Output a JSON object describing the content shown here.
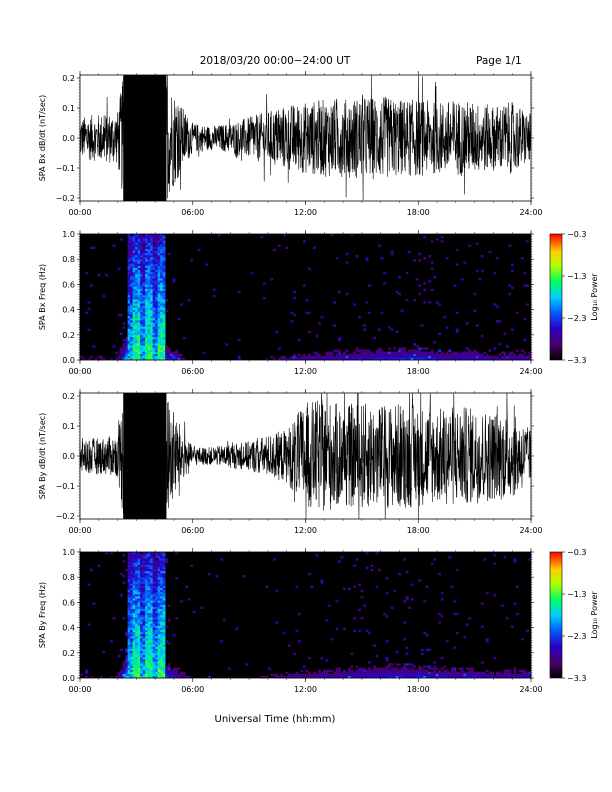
{
  "header": {
    "title": "2018/03/20  00:00−24:00 UT",
    "page": "Page 1/1"
  },
  "x_axis_title": "Universal Time (hh:mm)",
  "time_ticks": [
    "00:00",
    "06:00",
    "12:00",
    "18:00",
    "24:00"
  ],
  "chart_data": [
    {
      "type": "line",
      "id": "bx_waveform",
      "ylabel": "SPA Bx dB/dt (nT/sec)",
      "xlim": [
        0,
        24
      ],
      "ylim": [
        -0.21,
        0.21
      ],
      "yticks": [
        "0.2",
        "0.1",
        "0.0",
        "−0.1",
        "−0.2"
      ],
      "ytick_values": [
        0.2,
        0.1,
        0.0,
        -0.1,
        -0.2
      ],
      "saturated_interval_hours": [
        2.3,
        4.6
      ],
      "envelope_hours": [
        0,
        1,
        2,
        2.3,
        4.6,
        5.5,
        6,
        7,
        8,
        9,
        10,
        11,
        12,
        13,
        14,
        15,
        16,
        17,
        18,
        19,
        20,
        21,
        22,
        23,
        24
      ],
      "envelope_amplitude": [
        0.07,
        0.08,
        0.09,
        0.21,
        0.21,
        0.1,
        0.05,
        0.04,
        0.05,
        0.07,
        0.09,
        0.11,
        0.12,
        0.13,
        0.13,
        0.14,
        0.14,
        0.13,
        0.13,
        0.12,
        0.13,
        0.12,
        0.11,
        0.12,
        0.08
      ]
    },
    {
      "type": "heatmap",
      "id": "bx_spectrogram",
      "ylabel": "SPA Bx Freq (Hz)",
      "xlim": [
        0,
        24
      ],
      "ylim": [
        0,
        1.0
      ],
      "yticks": [
        "1.0",
        "0.8",
        "0.6",
        "0.4",
        "0.2",
        "0.0"
      ],
      "ytick_values": [
        1.0,
        0.8,
        0.6,
        0.4,
        0.2,
        0.0
      ],
      "colorbar": {
        "label": "Log₁₀ Power",
        "ticks": [
          "−0.3",
          "−1.3",
          "−2.3",
          "−3.3"
        ],
        "range": [
          -3.3,
          -0.3
        ]
      },
      "activity_hours": [
        0,
        2,
        2.6,
        3.3,
        4.5,
        6,
        9,
        12,
        15,
        17,
        18,
        20,
        21,
        22,
        24
      ],
      "activity_level": [
        0.25,
        0.2,
        1.0,
        0.95,
        0.6,
        0.15,
        0.15,
        0.35,
        0.45,
        0.5,
        0.5,
        0.4,
        0.45,
        0.35,
        0.4
      ]
    },
    {
      "type": "line",
      "id": "by_waveform",
      "ylabel": "SPA By dB/dt (nT/sec)",
      "xlim": [
        0,
        24
      ],
      "ylim": [
        -0.21,
        0.21
      ],
      "yticks": [
        "0.2",
        "0.1",
        "0.0",
        "−0.1",
        "−0.2"
      ],
      "ytick_values": [
        0.2,
        0.1,
        0.0,
        -0.1,
        -0.2
      ],
      "saturated_interval_hours": [
        2.3,
        4.6
      ],
      "envelope_hours": [
        0,
        1,
        2,
        2.3,
        4.6,
        5.5,
        6,
        7,
        8,
        9,
        10,
        11,
        12,
        13,
        14,
        15,
        16,
        17,
        18,
        19,
        20,
        21,
        22,
        23,
        24
      ],
      "envelope_amplitude": [
        0.06,
        0.06,
        0.07,
        0.21,
        0.21,
        0.08,
        0.03,
        0.03,
        0.04,
        0.05,
        0.07,
        0.09,
        0.18,
        0.19,
        0.17,
        0.18,
        0.17,
        0.18,
        0.17,
        0.16,
        0.17,
        0.16,
        0.15,
        0.14,
        0.09
      ]
    },
    {
      "type": "heatmap",
      "id": "by_spectrogram",
      "ylabel": "SPA By Freq (Hz)",
      "xlim": [
        0,
        24
      ],
      "ylim": [
        0,
        1.0
      ],
      "yticks": [
        "1.0",
        "0.8",
        "0.6",
        "0.4",
        "0.2",
        "0.0"
      ],
      "ytick_values": [
        1.0,
        0.8,
        0.6,
        0.4,
        0.2,
        0.0
      ],
      "colorbar": {
        "label": "Log₁₀ Power",
        "ticks": [
          "−0.3",
          "−1.3",
          "−2.3",
          "−3.3"
        ],
        "range": [
          -3.3,
          -0.3
        ]
      },
      "activity_hours": [
        0,
        2,
        2.6,
        3.3,
        4.5,
        6,
        9,
        12,
        15,
        17,
        18,
        20,
        21,
        22,
        24
      ],
      "activity_level": [
        0.25,
        0.2,
        1.0,
        0.95,
        0.6,
        0.15,
        0.15,
        0.35,
        0.45,
        0.5,
        0.5,
        0.4,
        0.45,
        0.35,
        0.4
      ]
    }
  ]
}
